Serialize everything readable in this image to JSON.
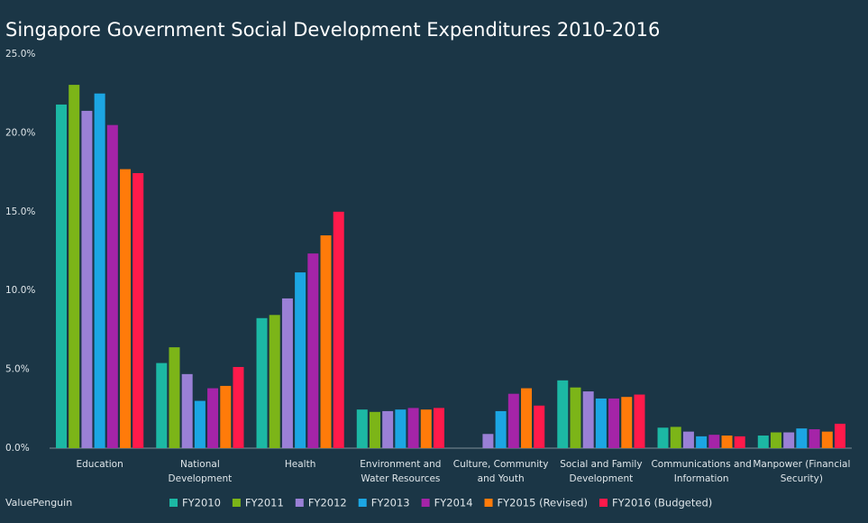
{
  "chart_data": {
    "type": "bar",
    "title": "Singapore Government Social Development Expenditures 2010-2016",
    "watermark": "ValuePenguin",
    "categories": [
      "Education",
      "National\nDevelopment",
      "Health",
      "Environment and\nWater Resources",
      "Culture, Community\nand Youth",
      "Social and Family\nDevelopment",
      "Communications and\nInformation",
      "Manpower (Financial\nSecurity)"
    ],
    "series": [
      {
        "name": "FY2010",
        "color": "#1cb8a4",
        "values": [
          21.8,
          5.4,
          8.25,
          2.45,
          null,
          4.3,
          1.3,
          0.8
        ]
      },
      {
        "name": "FY2011",
        "color": "#7cb518",
        "values": [
          23.05,
          6.4,
          8.45,
          2.3,
          null,
          3.85,
          1.35,
          1.0
        ]
      },
      {
        "name": "FY2012",
        "color": "#9a80d6",
        "values": [
          21.4,
          4.7,
          9.5,
          2.35,
          0.9,
          3.6,
          1.05,
          1.0
        ]
      },
      {
        "name": "FY2013",
        "color": "#1ca6e3",
        "values": [
          22.5,
          3.0,
          11.15,
          2.45,
          2.35,
          3.15,
          0.75,
          1.25
        ]
      },
      {
        "name": "FY2014",
        "color": "#a524a8",
        "values": [
          20.5,
          3.8,
          12.35,
          2.55,
          3.45,
          3.15,
          0.85,
          1.2
        ]
      },
      {
        "name": "FY2015 (Revised)",
        "color": "#ff7b0a",
        "values": [
          17.7,
          3.95,
          13.5,
          2.45,
          3.8,
          3.25,
          0.8,
          1.05
        ]
      },
      {
        "name": "FY2016 (Budgeted)",
        "color": "#ff1a4b",
        "values": [
          17.45,
          5.15,
          15.0,
          2.55,
          2.7,
          3.4,
          0.75,
          1.55
        ]
      }
    ],
    "ylim": [
      0,
      25
    ],
    "yticks": [
      {
        "value": 0,
        "label": "0.0%"
      },
      {
        "value": 5,
        "label": "5.0%"
      },
      {
        "value": 10,
        "label": "10.0%"
      },
      {
        "value": 15,
        "label": "15.0%"
      },
      {
        "value": 20,
        "label": "20.0%"
      },
      {
        "value": 25,
        "label": "25.0%"
      }
    ],
    "grid": false
  }
}
